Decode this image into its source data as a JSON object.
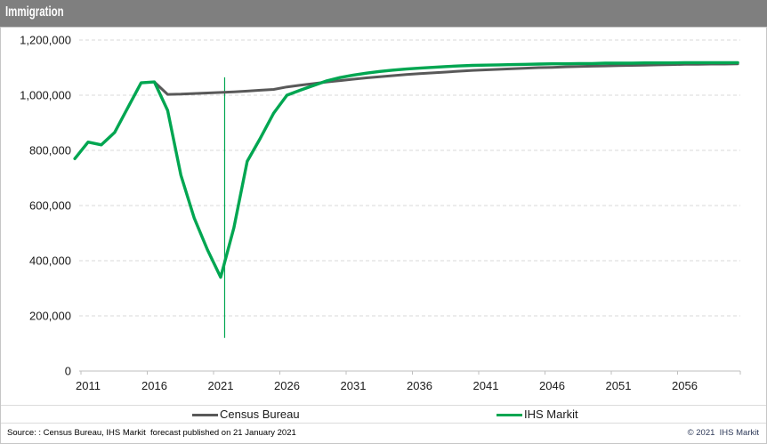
{
  "title_bar": {
    "title": "Immigration"
  },
  "legend": [
    {
      "label": "Census Bureau",
      "color": "#595959"
    },
    {
      "label": "IHS Markit",
      "color": "#00a651"
    }
  ],
  "footer": {
    "source": "Source: : Census Bureau, IHS Markit  forecast published on 21 January 2021",
    "copyright": "© 2021  IHS Markit"
  },
  "chart_data": {
    "type": "line",
    "title": "Immigration",
    "xlabel": "",
    "ylabel": "",
    "xlim": [
      2010,
      2060
    ],
    "ylim": [
      0,
      1200000
    ],
    "grid": "horizontal dashed",
    "legend_position": "bottom",
    "gridline_color": "#d9d9d9",
    "axis_color": "#bfbfbf",
    "tick_label_color": "#1a1a1a",
    "yticks": [
      0,
      200000,
      400000,
      600000,
      800000,
      1000000,
      1200000
    ],
    "ytick_labels": [
      "0",
      "200,000",
      "400,000",
      "600,000",
      "800,000",
      "1,000,000",
      "1,200,000"
    ],
    "xtick_years": [
      2011,
      2016,
      2021,
      2026,
      2031,
      2036,
      2041,
      2046,
      2051,
      2056
    ],
    "x": [
      2010,
      2011,
      2012,
      2013,
      2014,
      2015,
      2016,
      2017,
      2018,
      2019,
      2020,
      2021,
      2022,
      2023,
      2024,
      2025,
      2026,
      2027,
      2028,
      2029,
      2030,
      2031,
      2032,
      2033,
      2034,
      2035,
      2036,
      2037,
      2038,
      2039,
      2040,
      2041,
      2042,
      2043,
      2044,
      2045,
      2046,
      2047,
      2048,
      2049,
      2050,
      2051,
      2052,
      2053,
      2054,
      2055,
      2056,
      2057,
      2058,
      2059,
      2060
    ],
    "series": [
      {
        "name": "Census Bureau",
        "color": "#595959",
        "width": 3,
        "values": [
          null,
          null,
          null,
          null,
          null,
          null,
          1048000,
          1003000,
          1004000,
          1006000,
          1008000,
          1010000,
          1012000,
          1015000,
          1018000,
          1021000,
          1030000,
          1036000,
          1042000,
          1048000,
          1053000,
          1058000,
          1063000,
          1067000,
          1071000,
          1075000,
          1078000,
          1081000,
          1084000,
          1087000,
          1090000,
          1092000,
          1094000,
          1096000,
          1098000,
          1100000,
          1101000,
          1103000,
          1104000,
          1105000,
          1106000,
          1107000,
          1108000,
          1109000,
          1110000,
          1111000,
          1112000,
          1112000,
          1113000,
          1113000,
          1114000
        ]
      },
      {
        "name": "IHS Markit",
        "color": "#00a651",
        "width": 3.4,
        "values": [
          770000,
          830000,
          820000,
          865000,
          955000,
          1045000,
          1048000,
          945000,
          710000,
          555000,
          440000,
          340000,
          520000,
          760000,
          845000,
          935000,
          1000000,
          1018000,
          1035000,
          1052000,
          1064000,
          1073000,
          1080000,
          1086000,
          1091000,
          1095000,
          1098000,
          1101000,
          1104000,
          1106000,
          1108000,
          1109000,
          1110000,
          1111000,
          1112000,
          1113000,
          1114000,
          1114000,
          1115000,
          1115000,
          1116000,
          1116000,
          1116000,
          1117000,
          1117000,
          1117000,
          1118000,
          1118000,
          1118000,
          1118000,
          1118000
        ]
      }
    ],
    "annotations": [
      {
        "type": "vline",
        "x": 2021.3,
        "y_from": 120000,
        "y_to": 1065000,
        "color": "#00a651",
        "width": 1.2,
        "meaning": "forecast start marker"
      }
    ]
  }
}
